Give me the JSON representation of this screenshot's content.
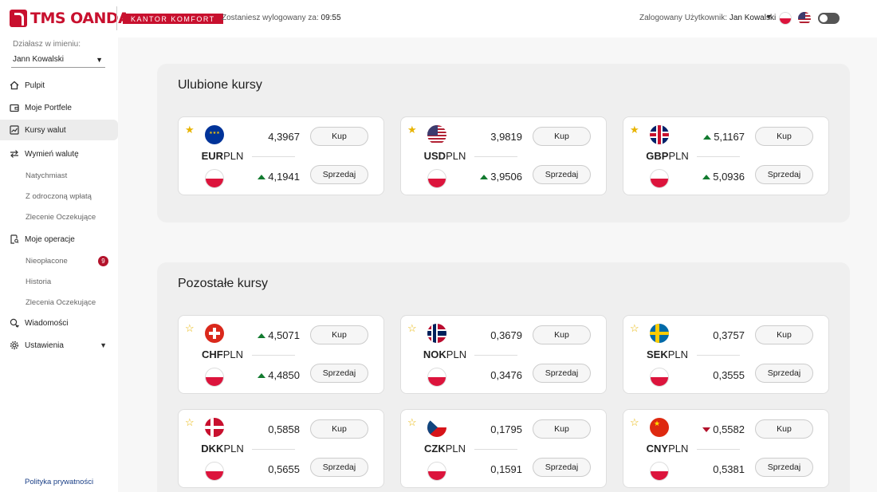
{
  "header": {
    "brand": "TMS OANDA",
    "product": "KANTOR KOMFORT",
    "logout_prefix": "Zostaniesz wylogowany za:",
    "logout_time": "09:55",
    "user_prefix": "Zalogowany Użytkownik:",
    "user_name": "Jan Kowalski"
  },
  "sidebar": {
    "acting_label": "Działasz w imieniu:",
    "acting_value": "Jann Kowalski",
    "items": {
      "pulpit": "Pulpit",
      "portfele": "Moje Portfele",
      "kursy": "Kursy walut",
      "wymien": "Wymień walutę",
      "natychmiast": "Natychmiast",
      "odroczona": "Z odroczoną wpłatą",
      "zlecenie": "Zlecenie Oczekujące",
      "operacje": "Moje operacje",
      "nieoplacone": "Nieopłacone",
      "nieoplacone_count": "9",
      "historia": "Historia",
      "zlecenia": "Zlecenia Oczekujące",
      "wiadomosci": "Wiadomości",
      "ustawienia": "Ustawienia"
    },
    "privacy": "Polityka prywatności"
  },
  "favorites": {
    "title": "Ulubione kursy",
    "cards": [
      {
        "base": "EUR",
        "quote": "PLN",
        "buy": "4,3967",
        "sell": "4,1941",
        "buy_trend": "",
        "sell_trend": "up",
        "fav": true,
        "base_flag": "eu"
      },
      {
        "base": "USD",
        "quote": "PLN",
        "buy": "3,9819",
        "sell": "3,9506",
        "buy_trend": "",
        "sell_trend": "up",
        "fav": true,
        "base_flag": "us"
      },
      {
        "base": "GBP",
        "quote": "PLN",
        "buy": "5,1167",
        "sell": "5,0936",
        "buy_trend": "up",
        "sell_trend": "up",
        "fav": true,
        "base_flag": "gb"
      }
    ]
  },
  "others": {
    "title": "Pozostałe kursy",
    "cards": [
      {
        "base": "CHF",
        "quote": "PLN",
        "buy": "4,5071",
        "sell": "4,4850",
        "buy_trend": "up",
        "sell_trend": "up",
        "fav": false,
        "base_flag": "ch"
      },
      {
        "base": "NOK",
        "quote": "PLN",
        "buy": "0,3679",
        "sell": "0,3476",
        "buy_trend": "",
        "sell_trend": "",
        "fav": false,
        "base_flag": "no"
      },
      {
        "base": "SEK",
        "quote": "PLN",
        "buy": "0,3757",
        "sell": "0,3555",
        "buy_trend": "",
        "sell_trend": "",
        "fav": false,
        "base_flag": "se"
      },
      {
        "base": "DKK",
        "quote": "PLN",
        "buy": "0,5858",
        "sell": "0,5655",
        "buy_trend": "",
        "sell_trend": "",
        "fav": false,
        "base_flag": "dk"
      },
      {
        "base": "CZK",
        "quote": "PLN",
        "buy": "0,1795",
        "sell": "0,1591",
        "buy_trend": "",
        "sell_trend": "",
        "fav": false,
        "base_flag": "cz"
      },
      {
        "base": "CNY",
        "quote": "PLN",
        "buy": "0,5582",
        "sell": "0,5381",
        "buy_trend": "down",
        "sell_trend": "",
        "fav": false,
        "base_flag": "cn"
      }
    ]
  },
  "buttons": {
    "buy": "Kup",
    "sell": "Sprzedaj"
  },
  "colors": {
    "brand": "#c8102e",
    "up": "#127a2f",
    "down": "#b3122b",
    "star": "#e8b400"
  }
}
